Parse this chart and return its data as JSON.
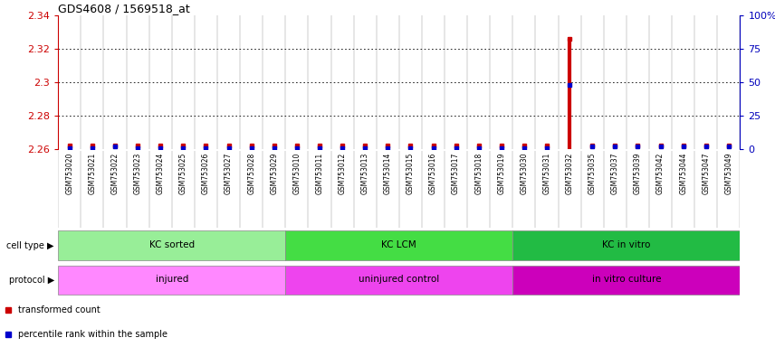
{
  "title": "GDS4608 / 1569518_at",
  "samples": [
    "GSM753020",
    "GSM753021",
    "GSM753022",
    "GSM753023",
    "GSM753024",
    "GSM753025",
    "GSM753026",
    "GSM753027",
    "GSM753028",
    "GSM753029",
    "GSM753010",
    "GSM753011",
    "GSM753012",
    "GSM753013",
    "GSM753014",
    "GSM753015",
    "GSM753016",
    "GSM753017",
    "GSM753018",
    "GSM753019",
    "GSM753030",
    "GSM753031",
    "GSM753032",
    "GSM753035",
    "GSM753037",
    "GSM753039",
    "GSM753042",
    "GSM753044",
    "GSM753047",
    "GSM753049"
  ],
  "red_values": [
    2.262,
    2.262,
    2.262,
    2.262,
    2.262,
    2.262,
    2.262,
    2.262,
    2.262,
    2.262,
    2.262,
    2.262,
    2.262,
    2.262,
    2.262,
    2.262,
    2.262,
    2.262,
    2.262,
    2.262,
    2.262,
    2.262,
    2.326,
    2.262,
    2.262,
    2.262,
    2.262,
    2.262,
    2.262,
    2.262
  ],
  "blue_percentiles": [
    1,
    1,
    2,
    1,
    1,
    1,
    1,
    1,
    1,
    1,
    1,
    1,
    1,
    1,
    1,
    1,
    1,
    1,
    1,
    1,
    1,
    1,
    48,
    2,
    2,
    2,
    2,
    2,
    2,
    2
  ],
  "ylim_left": [
    2.26,
    2.34
  ],
  "ylim_right": [
    0,
    100
  ],
  "yticks_left": [
    2.26,
    2.28,
    2.3,
    2.32,
    2.34
  ],
  "yticks_right": [
    0,
    25,
    50,
    75,
    100
  ],
  "ytick_labels_right": [
    "0",
    "25",
    "50",
    "75",
    "100%"
  ],
  "cell_type_groups": [
    {
      "label": "KC sorted",
      "start": 0,
      "end": 9,
      "color": "#98EE98"
    },
    {
      "label": "KC LCM",
      "start": 10,
      "end": 19,
      "color": "#44DD44"
    },
    {
      "label": "KC in vitro",
      "start": 20,
      "end": 29,
      "color": "#22BB44"
    }
  ],
  "protocol_groups": [
    {
      "label": "injured",
      "start": 0,
      "end": 9,
      "color": "#FF88FF"
    },
    {
      "label": "uninjured control",
      "start": 10,
      "end": 19,
      "color": "#EE44EE"
    },
    {
      "label": "in vitro culture",
      "start": 20,
      "end": 29,
      "color": "#CC00BB"
    }
  ],
  "red_color": "#CC0000",
  "blue_color": "#0000CC",
  "left_axis_color": "#CC0000",
  "right_axis_color": "#0000BB",
  "sample_label_bg": "#CCCCCC",
  "baseline": 2.26,
  "cell_type_label": "cell type",
  "protocol_label": "protocol"
}
